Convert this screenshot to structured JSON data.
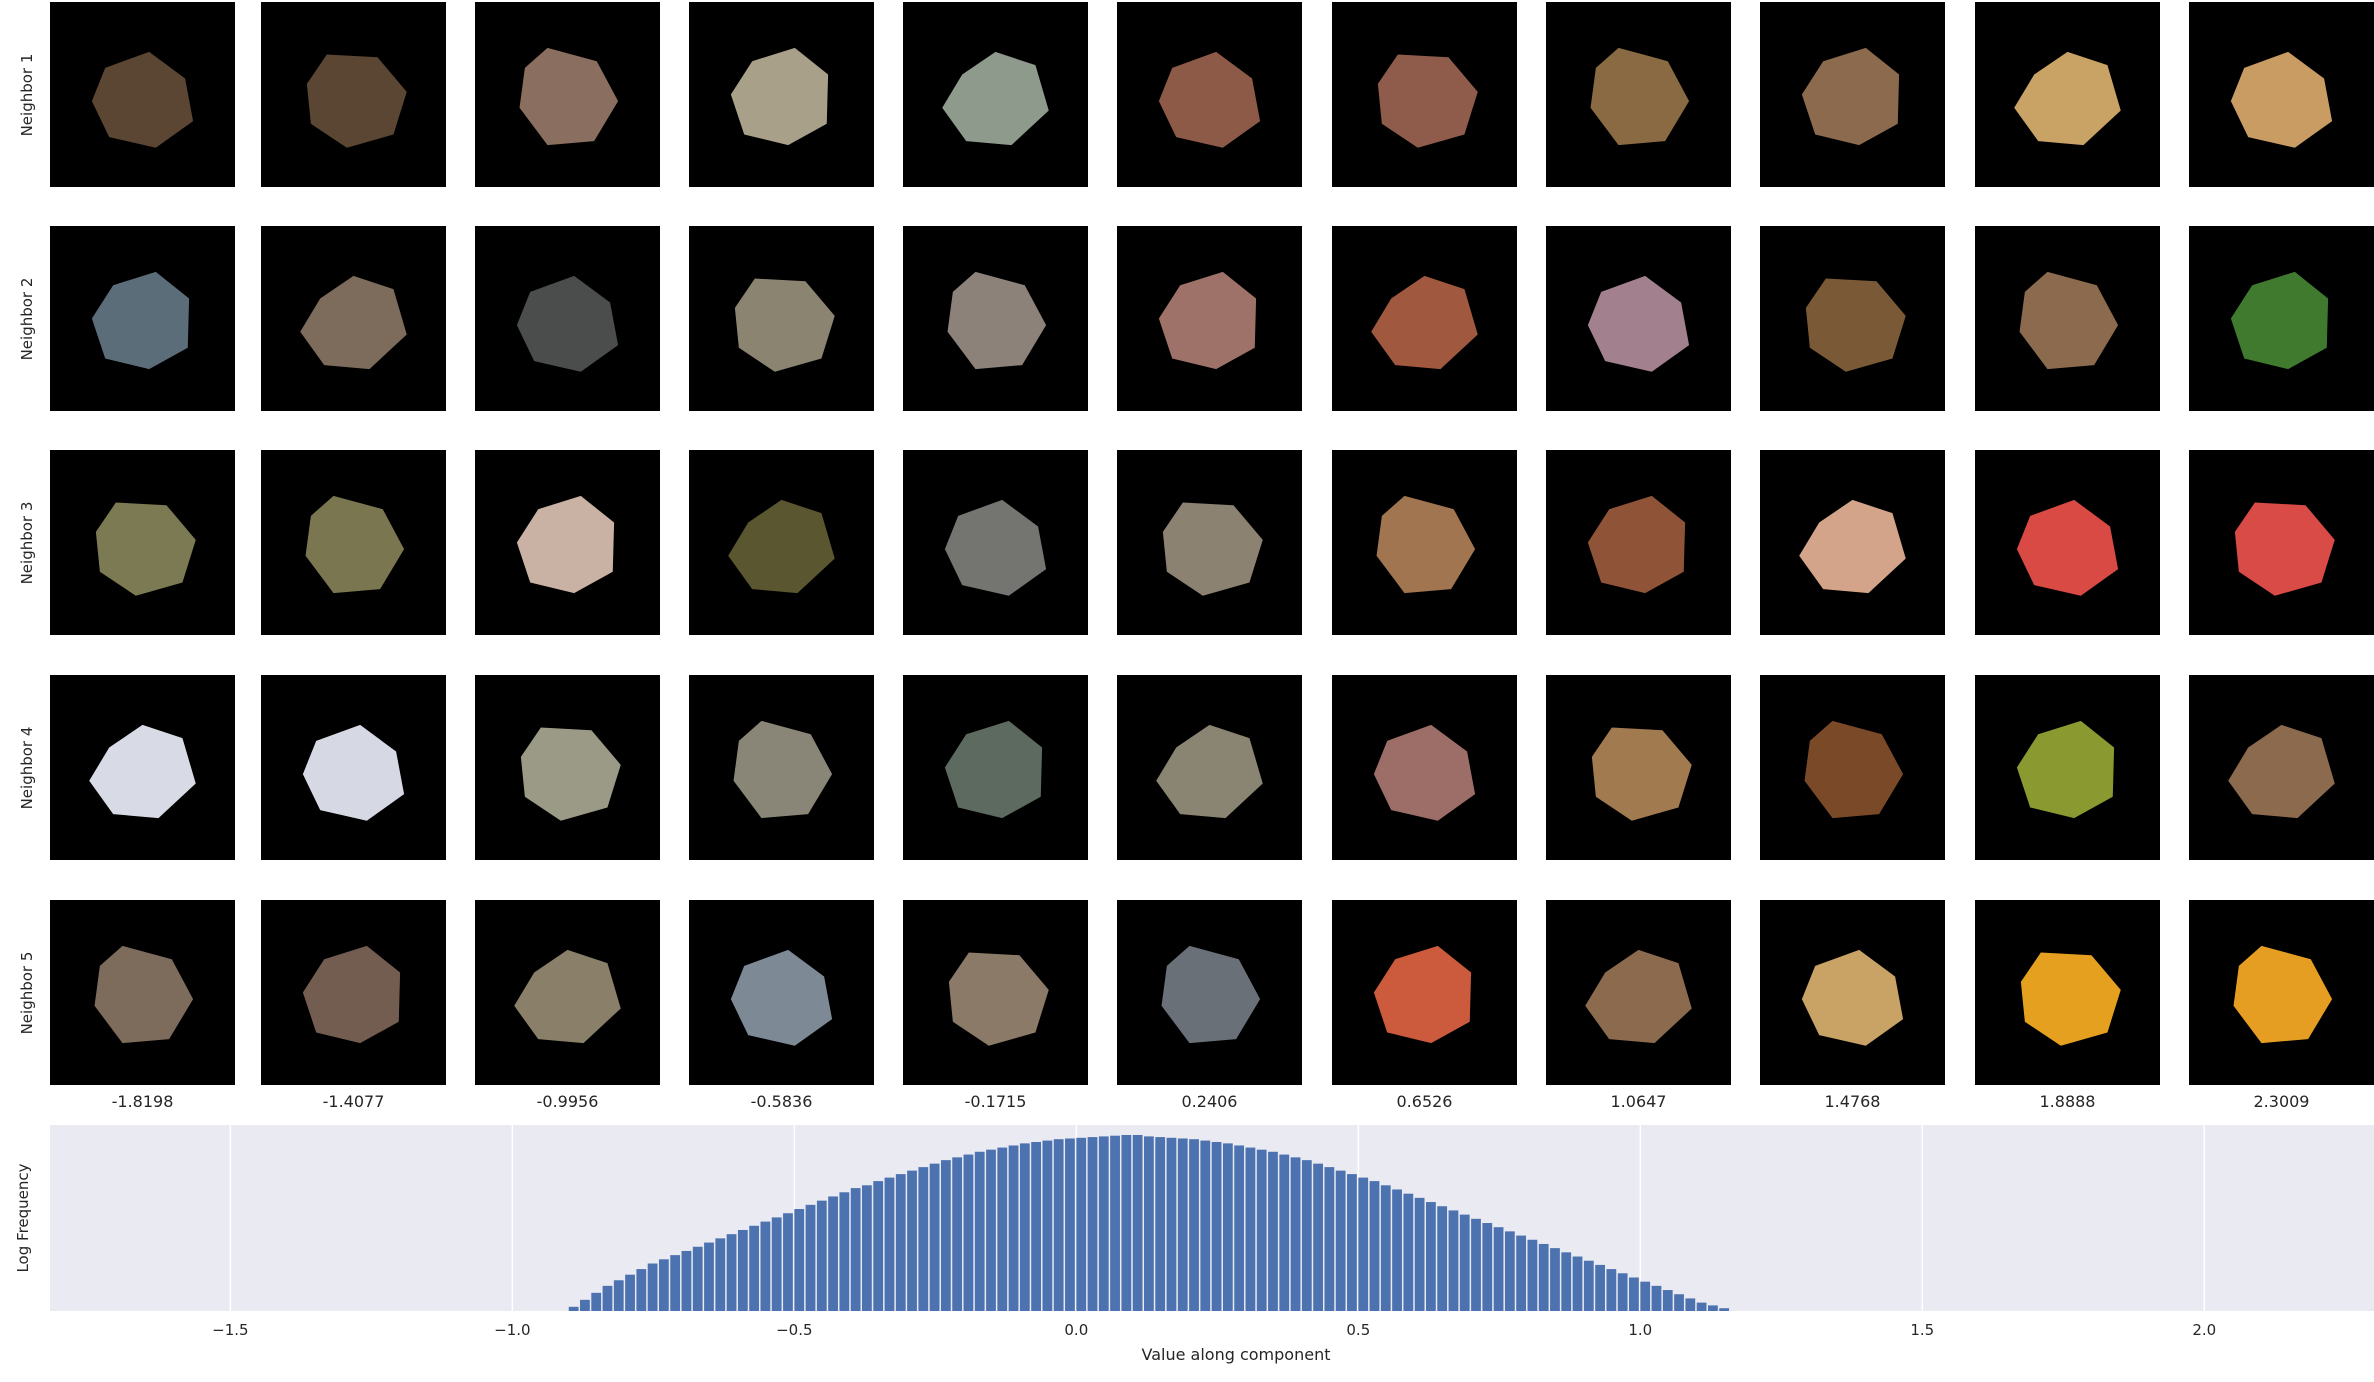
{
  "row_labels": [
    "Neighbor 1",
    "Neighbor 2",
    "Neighbor 3",
    "Neighbor 4",
    "Neighbor 5"
  ],
  "column_values": [
    "-1.8198",
    "-1.4077",
    "-0.9956",
    "-0.5836",
    "-0.1715",
    "0.2406",
    "0.6526",
    "1.0647",
    "1.4768",
    "1.8888",
    "2.3009"
  ],
  "tile_colors": [
    [
      "#5a4632",
      "#5b4633",
      "#8a6e5f",
      "#a9a08a",
      "#8d9a8c",
      "#8e5a48",
      "#8f5c4b",
      "#8a6a42",
      "#8c6a4e",
      "#c9a266",
      "#c89c63"
    ],
    [
      "#5c6d7a",
      "#7d6c5c",
      "#4a4d4c",
      "#8a8471",
      "#8d8279",
      "#9e7269",
      "#a0593e",
      "#a3808e",
      "#7a5a36",
      "#8c6a4e",
      "#3f7a2e"
    ],
    [
      "#7c7a52",
      "#7a7650",
      "#c9b1a3",
      "#5a5630",
      "#747470",
      "#8c8272",
      "#a07550",
      "#8f5438",
      "#d4a48a",
      "#d94a45",
      "#d84b46"
    ],
    [
      "#d8dbe6",
      "#d6d9e4",
      "#9a9a86",
      "#8a8677",
      "#5c6a60",
      "#8a8572",
      "#9d6e68",
      "#a27a50",
      "#7a4a28",
      "#8a9a30",
      "#8c6a4e"
    ],
    [
      "#7d6c5c",
      "#735d50",
      "#8a8069",
      "#7d8a96",
      "#8c7a68",
      "#6a7078",
      "#cc5a3c",
      "#8c6a4e",
      "#c9a266",
      "#e6a020",
      "#e69e22"
    ]
  ],
  "chart_data": {
    "type": "bar",
    "xlabel": "Value along component",
    "ylabel": "Log Frequency",
    "xlim": [
      -1.8198,
      2.3009
    ],
    "xticks": [
      -1.5,
      -1.0,
      -0.5,
      0.0,
      0.5,
      1.0,
      1.5,
      2.0
    ],
    "xtick_labels": [
      "−1.5",
      "−1.0",
      "−0.5",
      "0.0",
      "0.5",
      "1.0",
      "1.5",
      "2.0"
    ],
    "bar_color": "#4c72b0",
    "background": "#eaeaf2",
    "grid": true,
    "bins": {
      "start": -0.9,
      "width": 0.02,
      "log_frequency": [
        0.3,
        0.8,
        1.3,
        1.8,
        2.2,
        2.6,
        3.0,
        3.4,
        3.7,
        4.0,
        4.3,
        4.6,
        4.9,
        5.2,
        5.5,
        5.8,
        6.1,
        6.4,
        6.7,
        7.0,
        7.3,
        7.6,
        7.9,
        8.2,
        8.5,
        8.8,
        9.0,
        9.3,
        9.55,
        9.8,
        10.05,
        10.3,
        10.55,
        10.8,
        11.0,
        11.2,
        11.4,
        11.55,
        11.7,
        11.85,
        12.0,
        12.1,
        12.2,
        12.3,
        12.35,
        12.4,
        12.45,
        12.5,
        12.55,
        12.6,
        12.6,
        12.5,
        12.45,
        12.4,
        12.35,
        12.3,
        12.2,
        12.1,
        12.0,
        11.85,
        11.7,
        11.55,
        11.4,
        11.2,
        11.0,
        10.8,
        10.55,
        10.3,
        10.05,
        9.8,
        9.55,
        9.3,
        9.0,
        8.7,
        8.4,
        8.1,
        7.8,
        7.5,
        7.2,
        6.9,
        6.6,
        6.3,
        6.0,
        5.7,
        5.4,
        5.1,
        4.8,
        4.5,
        4.2,
        3.9,
        3.6,
        3.3,
        3.0,
        2.7,
        2.4,
        2.1,
        1.8,
        1.5,
        1.2,
        0.9,
        0.6,
        0.4,
        0.2
      ]
    },
    "ylim": [
      0,
      12.6
    ]
  }
}
